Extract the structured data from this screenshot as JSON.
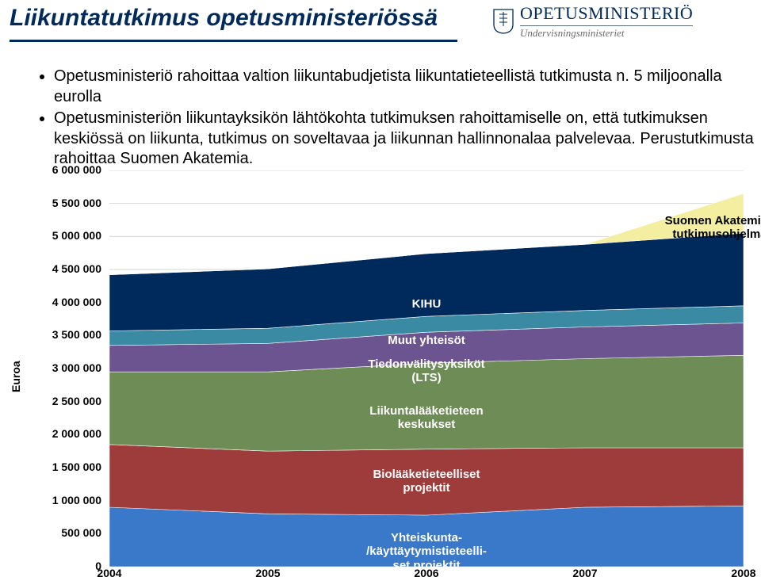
{
  "title": "Liikuntatutkimus opetusministeriössä",
  "logo": {
    "main": "OPETUSMINISTERIÖ",
    "sub": "Undervisningsministeriet"
  },
  "bullets": [
    "Opetusministeriö rahoittaa valtion liikuntabudjetista liikuntatieteellistä tutkimusta n. 5 miljoonalla eurolla",
    "Opetusministeriön liikuntayksikön lähtökohta tutkimuksen rahoittamiselle on, että tutkimuksen keskiössä on liikunta, tutkimus on soveltavaa ja liikunnan hallinnonalaa palvelevaa. Perustutkimusta rahoittaa Suomen Akatemia."
  ],
  "chart": {
    "type": "stacked-area",
    "ylabel": "Euroa",
    "ylim": [
      0,
      6000000
    ],
    "ytick_step": 500000,
    "yticks": [
      "0",
      "500 000",
      "1 000 000",
      "1 500 000",
      "2 000 000",
      "2 500 000",
      "3 000 000",
      "3 500 000",
      "4 000 000",
      "4 500 000",
      "5 000 000",
      "5 500 000",
      "6 000 000"
    ],
    "x": [
      2004,
      2005,
      2006,
      2007,
      2008
    ],
    "series": [
      {
        "name": "Yhteiskunta-/käyttäytymistieteelliset projektit",
        "label": "Yhteiskunta-\n/käyttäytymistieteelli-\nset projektit",
        "color": "#3a78c9",
        "values": [
          900000,
          800000,
          780000,
          900000,
          920000
        ]
      },
      {
        "name": "Biolääketieteelliset projektit",
        "label": "Biolääketieteelliset\nprojektit",
        "color": "#9e3b3b",
        "values": [
          950000,
          950000,
          1000000,
          900000,
          880000
        ]
      },
      {
        "name": "Liikuntalääketieteen keskukset",
        "label": "Liikuntalääketieteen\nkeskukset",
        "color": "#6e8c56",
        "values": [
          1100000,
          1200000,
          1300000,
          1350000,
          1400000
        ]
      },
      {
        "name": "Tiedonvälitysyksiköt (LTS)",
        "label": "Tiedonvälitysyksiköt\n(LTS)",
        "color": "#6b548f",
        "values": [
          400000,
          430000,
          470000,
          480000,
          490000
        ]
      },
      {
        "name": "Muut yhteisöt",
        "label": "Muut yhteisöt",
        "color": "#3a8aa3",
        "values": [
          220000,
          230000,
          240000,
          250000,
          260000
        ]
      },
      {
        "name": "KIHU",
        "label": "KIHU",
        "color": "#002a5c",
        "values": [
          850000,
          900000,
          950000,
          1000000,
          1100000
        ]
      },
      {
        "name": "Suomen Akatemian tutkimusohjelma",
        "label": "Suomen Akatemian\ntutkimusohjelma",
        "color": "#f4eea0",
        "text": "dark",
        "values": [
          0,
          0,
          0,
          0,
          600000
        ]
      }
    ],
    "grid_color": "#d6d6d6",
    "background_color": "#ffffff",
    "label_font_size": 15,
    "tick_font_size": 14,
    "series_label_positions": [
      {
        "x": 400,
        "y": 465
      },
      {
        "x": 400,
        "y": 385
      },
      {
        "x": 400,
        "y": 305
      },
      {
        "x": 400,
        "y": 246
      },
      {
        "x": 400,
        "y": 216
      },
      {
        "x": 400,
        "y": 170
      },
      {
        "x": 770,
        "y": 65
      }
    ]
  }
}
